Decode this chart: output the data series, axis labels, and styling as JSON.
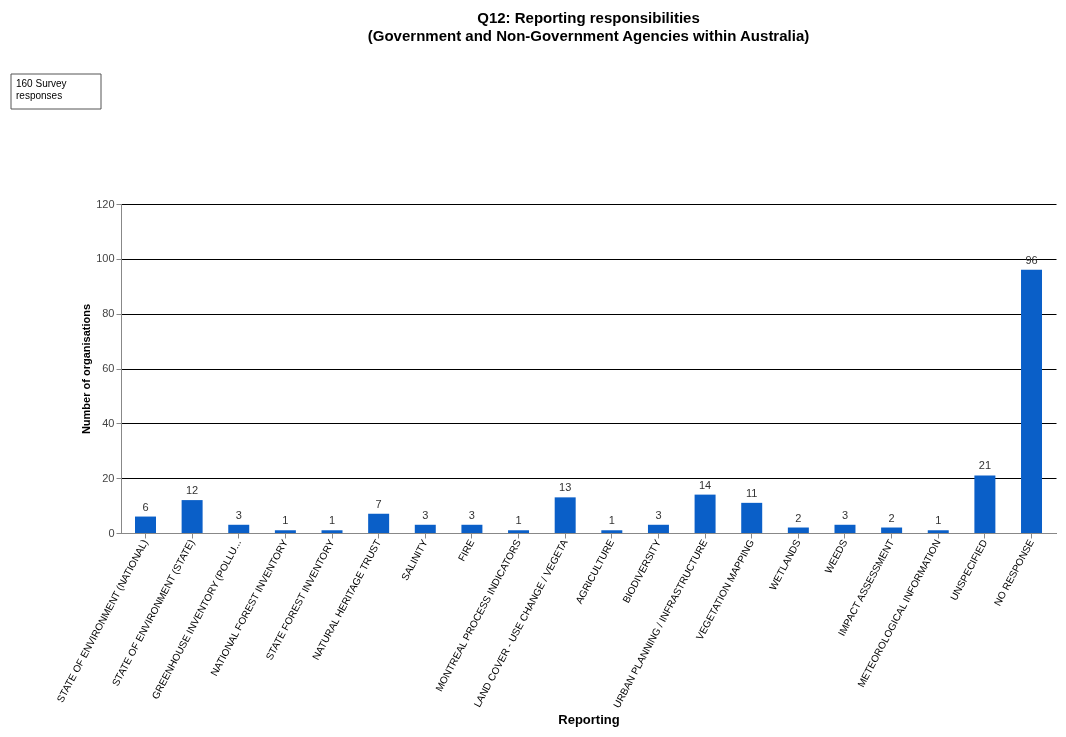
{
  "chart_data": {
    "type": "bar",
    "title": "Q12: Reporting responsibilities",
    "subtitle": "(Government and Non-Government Agencies within Australia)",
    "xlabel": "Reporting",
    "ylabel": "Number of organisations",
    "annotations": [
      "160 Survey\nresponses"
    ],
    "categories": [
      "STATE OF ENVIRONMENT (NATIONAL)",
      "STATE OF ENVIRONMENT (STATE)",
      "GREENHOUSE INVENTORY (POLLU...",
      "NATIONAL FOREST INVENTORY",
      "STATE FOREST INVENTORY",
      "NATURAL HERITAGE TRUST",
      "SALINITY",
      "FIRE",
      "MONTREAL PROCESS INDICATORS",
      "LAND COVER - USE CHANGE / VEGETA",
      "AGRICULTURE",
      "BIODIVERSITY",
      "URBAN PLANNING / INFRASTRUCTURE",
      "VEGETATION MAPPING",
      "WETLANDS",
      "WEEDS",
      "IMPACT ASSESSMENT",
      "METEOROLOGICAL INFORMATION",
      "UNSPECIFIED",
      "NO RESPONSE"
    ],
    "values": [
      6,
      12,
      3,
      1,
      1,
      7,
      3,
      3,
      1,
      13,
      1,
      3,
      14,
      11,
      2,
      3,
      2,
      1,
      21,
      96
    ],
    "color": "#0a5fc8",
    "ylim": [
      0,
      120
    ],
    "yticks": [
      0,
      20,
      40,
      60,
      80,
      100,
      120
    ],
    "grid": "y",
    "data_labels": true
  }
}
